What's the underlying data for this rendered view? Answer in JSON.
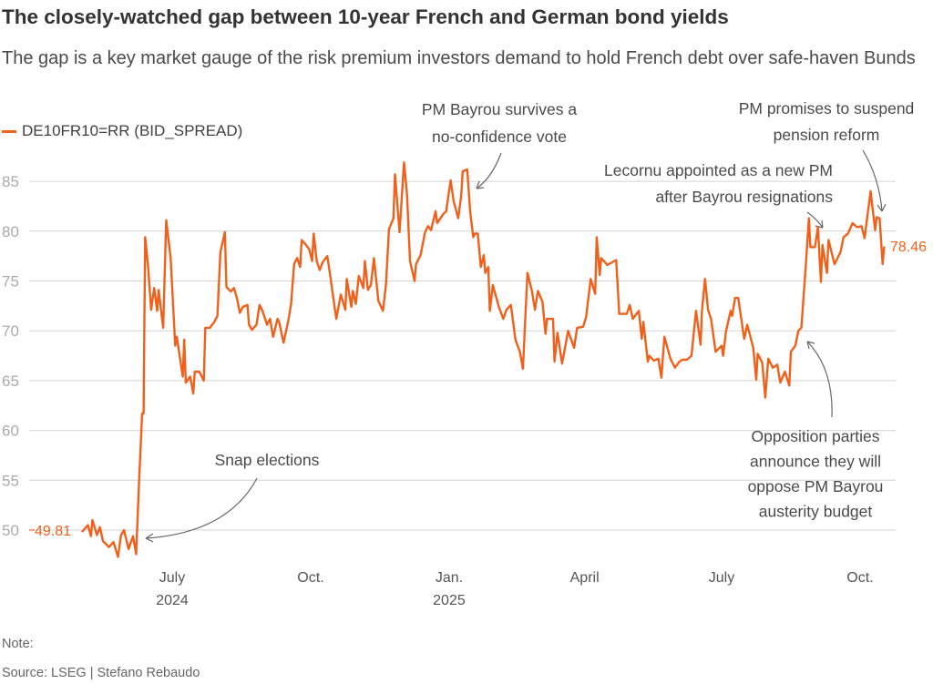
{
  "header": {
    "title": "The closely-watched gap between 10-year French and German bond yields",
    "subtitle": "The gap is a key market gauge of the risk premium investors demand to hold French debt over safe-haven Bunds"
  },
  "footer": {
    "note": "Note:",
    "source": "Source: LSEG | Stefano Rebaudo"
  },
  "chart_data": {
    "type": "line",
    "title": "The closely-watched gap between 10-year French and German bond yields",
    "xlabel": "",
    "ylabel": "",
    "x_unit": "days since 2024-07-01",
    "ylim": [
      46.5,
      88
    ],
    "yticks": [
      50,
      55,
      60,
      65,
      70,
      75,
      80,
      85
    ],
    "xticks": [
      {
        "day": 0,
        "label": "July",
        "sub": "2024"
      },
      {
        "day": 92,
        "label": "Oct.",
        "sub": ""
      },
      {
        "day": 184,
        "label": "Jan.",
        "sub": "2025"
      },
      {
        "day": 274,
        "label": "April",
        "sub": ""
      },
      {
        "day": 365,
        "label": "July",
        "sub": ""
      },
      {
        "day": 457,
        "label": "Oct.",
        "sub": ""
      }
    ],
    "grid": true,
    "legend": "top-left",
    "color": "#f0601a",
    "series": [
      {
        "name": "DE10FR10=RR (BID_SPREAD)",
        "start_label": "49.81",
        "end_label": "78.46",
        "points": [
          [
            -60,
            49.81
          ],
          [
            -56,
            50.5
          ],
          [
            -54,
            49.4
          ],
          [
            -53,
            51
          ],
          [
            -50,
            49.5
          ],
          [
            -48,
            50.3
          ],
          [
            -46,
            48.9
          ],
          [
            -42,
            48.3
          ],
          [
            -39,
            48.8
          ],
          [
            -36,
            47.3
          ],
          [
            -34,
            49.5
          ],
          [
            -32,
            50
          ],
          [
            -29,
            48.1
          ],
          [
            -26,
            49.4
          ],
          [
            -24,
            47.6
          ],
          [
            -22,
            55
          ],
          [
            -20,
            61.7
          ],
          [
            -19,
            61.7
          ],
          [
            -18,
            79.4
          ],
          [
            -16,
            76.4
          ],
          [
            -14,
            72.1
          ],
          [
            -12,
            74.3
          ],
          [
            -10,
            72
          ],
          [
            -9,
            74.1
          ],
          [
            -6,
            70.3
          ],
          [
            -4,
            81.1
          ],
          [
            -1,
            77.3
          ],
          [
            2,
            68.5
          ],
          [
            3,
            69.4
          ],
          [
            7,
            65.4
          ],
          [
            8,
            69.1
          ],
          [
            9,
            64.8
          ],
          [
            12,
            65.4
          ],
          [
            14,
            63.7
          ],
          [
            15,
            65.9
          ],
          [
            18,
            65.9
          ],
          [
            21,
            65
          ],
          [
            22,
            70.3
          ],
          [
            25,
            70.3
          ],
          [
            28,
            70.9
          ],
          [
            30,
            71.5
          ],
          [
            32,
            77.9
          ],
          [
            35,
            79.9
          ],
          [
            36,
            74.4
          ],
          [
            39,
            73.95
          ],
          [
            41,
            74.3
          ],
          [
            43,
            73.3
          ],
          [
            45,
            71.8
          ],
          [
            47,
            72.4
          ],
          [
            50,
            72.6
          ],
          [
            51,
            70.6
          ],
          [
            53,
            70.1
          ],
          [
            56,
            70.6
          ],
          [
            58,
            72.6
          ],
          [
            60,
            72
          ],
          [
            63,
            70.6
          ],
          [
            65,
            71.2
          ],
          [
            67,
            69.4
          ],
          [
            70,
            71.2
          ],
          [
            71,
            70.9
          ],
          [
            74,
            68.8
          ],
          [
            77,
            70.9
          ],
          [
            79,
            72.7
          ],
          [
            81,
            76.7
          ],
          [
            83,
            77.3
          ],
          [
            85,
            76.4
          ],
          [
            86,
            79.1
          ],
          [
            89,
            78.6
          ],
          [
            91,
            78.2
          ],
          [
            93,
            77
          ],
          [
            94,
            79.75
          ],
          [
            96,
            77
          ],
          [
            98,
            76.1
          ],
          [
            100,
            76.9
          ],
          [
            103,
            77.5
          ],
          [
            105,
            75.5
          ],
          [
            107,
            73.3
          ],
          [
            109,
            71.2
          ],
          [
            112,
            73.65
          ],
          [
            115,
            72.1
          ],
          [
            116,
            75.2
          ],
          [
            119,
            72.4
          ],
          [
            120,
            74
          ],
          [
            122,
            72.7
          ],
          [
            124,
            75.5
          ],
          [
            127,
            74.3
          ],
          [
            128,
            77
          ],
          [
            130,
            74.1
          ],
          [
            132,
            74.6
          ],
          [
            134,
            77.3
          ],
          [
            137,
            73
          ],
          [
            140,
            72
          ],
          [
            142,
            74.6
          ],
          [
            144,
            80.2
          ],
          [
            147,
            81.3
          ],
          [
            148,
            85.7
          ],
          [
            151,
            79.9
          ],
          [
            154,
            86.9
          ],
          [
            156,
            83.7
          ],
          [
            158,
            77
          ],
          [
            161,
            75
          ],
          [
            162,
            76.7
          ],
          [
            165,
            77.6
          ],
          [
            168,
            79.9
          ],
          [
            170,
            80.5
          ],
          [
            172,
            80.1
          ],
          [
            175,
            82
          ],
          [
            176,
            80.8
          ],
          [
            180,
            81.7
          ],
          [
            182,
            82
          ],
          [
            185,
            85.1
          ],
          [
            187,
            83
          ],
          [
            190,
            81.3
          ],
          [
            192,
            83.6
          ],
          [
            193,
            86
          ],
          [
            196,
            86.2
          ],
          [
            198,
            81.9
          ],
          [
            200,
            79.4
          ],
          [
            201,
            79.75
          ],
          [
            203,
            79.75
          ],
          [
            205,
            76.4
          ],
          [
            207,
            77.6
          ],
          [
            208,
            75.8
          ],
          [
            210,
            76.4
          ],
          [
            211,
            72
          ],
          [
            213,
            74.6
          ],
          [
            217,
            72.4
          ],
          [
            220,
            71.2
          ],
          [
            222,
            72.1
          ],
          [
            225,
            72.6
          ],
          [
            228,
            69.1
          ],
          [
            231,
            67.9
          ],
          [
            233,
            66.2
          ],
          [
            236,
            75.8
          ],
          [
            239,
            74
          ],
          [
            241,
            72.1
          ],
          [
            243,
            74
          ],
          [
            246,
            72.9
          ],
          [
            248,
            69.7
          ],
          [
            249,
            71.2
          ],
          [
            253,
            71.2
          ],
          [
            254,
            66.9
          ],
          [
            256,
            69.8
          ],
          [
            259,
            66.7
          ],
          [
            263,
            70
          ],
          [
            267,
            68.3
          ],
          [
            269,
            70.3
          ],
          [
            273,
            70.4
          ],
          [
            275,
            71.4
          ],
          [
            278,
            75.2
          ],
          [
            281,
            73.7
          ],
          [
            282,
            79.4
          ],
          [
            284,
            75.6
          ],
          [
            285,
            77.3
          ],
          [
            288,
            76.8
          ],
          [
            289,
            76.6
          ],
          [
            295,
            77.1
          ],
          [
            297,
            71.7
          ],
          [
            302,
            71.7
          ],
          [
            304,
            72.6
          ],
          [
            306,
            71.2
          ],
          [
            310,
            72
          ],
          [
            312,
            69.2
          ],
          [
            313,
            70.9
          ],
          [
            316,
            66.9
          ],
          [
            317,
            67.5
          ],
          [
            320,
            67
          ],
          [
            323,
            67.2
          ],
          [
            325,
            65.3
          ],
          [
            327,
            69.4
          ],
          [
            331,
            67.2
          ],
          [
            334,
            66.3
          ],
          [
            337,
            66.9
          ],
          [
            339,
            67.1
          ],
          [
            342,
            67.1
          ],
          [
            345,
            67.5
          ],
          [
            348,
            72
          ],
          [
            351,
            68.6
          ],
          [
            352,
            72.1
          ],
          [
            354,
            75.2
          ],
          [
            356,
            72.1
          ],
          [
            358,
            71.2
          ],
          [
            361,
            67.9
          ],
          [
            365,
            68.5
          ],
          [
            366,
            67.5
          ],
          [
            368,
            70
          ],
          [
            371,
            72
          ],
          [
            372,
            71.5
          ],
          [
            374,
            73.3
          ],
          [
            376,
            73.3
          ],
          [
            380,
            69.2
          ],
          [
            382,
            70.6
          ],
          [
            386,
            68.3
          ],
          [
            388,
            65.1
          ],
          [
            389,
            67.7
          ],
          [
            392,
            66.8
          ],
          [
            394,
            63.3
          ],
          [
            396,
            67.2
          ],
          [
            399,
            66.3
          ],
          [
            402,
            66.6
          ],
          [
            404,
            64.8
          ],
          [
            407,
            65.9
          ],
          [
            410,
            64.5
          ],
          [
            411,
            67.9
          ],
          [
            414,
            68.5
          ],
          [
            416,
            70
          ],
          [
            418,
            70.3
          ],
          [
            421,
            76.7
          ],
          [
            423,
            81.3
          ],
          [
            424,
            78.4
          ],
          [
            427,
            78.4
          ],
          [
            429,
            80.4
          ],
          [
            431,
            74.9
          ],
          [
            432,
            78.6
          ],
          [
            435,
            75.8
          ],
          [
            436,
            79.1
          ],
          [
            440,
            76.7
          ],
          [
            444,
            77.9
          ],
          [
            446,
            79.4
          ],
          [
            449,
            79.75
          ],
          [
            452,
            80.8
          ],
          [
            455,
            80.4
          ],
          [
            458,
            80.5
          ],
          [
            460,
            79.3
          ],
          [
            464,
            84
          ],
          [
            467,
            80.1
          ],
          [
            468,
            81.4
          ],
          [
            470,
            81.3
          ],
          [
            472,
            76.7
          ],
          [
            473,
            78.46
          ]
        ]
      }
    ],
    "annotations": [
      {
        "lines": [
          "Snap elections"
        ]
      },
      {
        "lines": [
          "PM Bayrou survives a",
          "no-confidence vote"
        ]
      },
      {
        "lines": [
          "Lecornu appointed as a new PM",
          "after Bayrou resignations"
        ]
      },
      {
        "lines": [
          "PM promises to suspend",
          "pension reform"
        ]
      },
      {
        "lines": [
          "Opposition parties",
          "announce they will",
          "oppose PM Bayrou",
          "austerity budget"
        ]
      }
    ]
  }
}
